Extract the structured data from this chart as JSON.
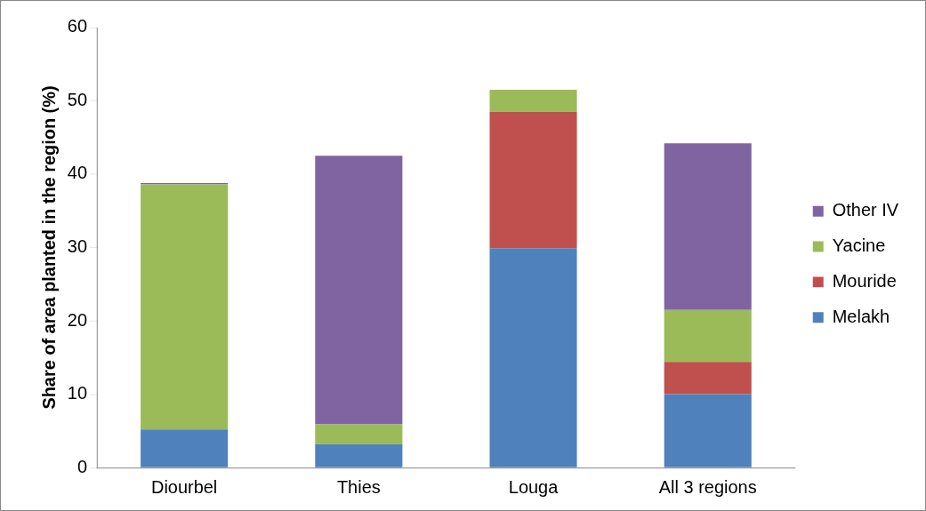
{
  "chart_data": {
    "type": "bar",
    "stacked": true,
    "ylabel": "Share of area planted in the region (%)",
    "categories": [
      "Diourbel",
      "Thies",
      "Louga",
      "All 3 regions"
    ],
    "series": [
      {
        "name": "Melakh",
        "color": "#4f81bd",
        "values": [
          5.2,
          3.2,
          29.9,
          10.0
        ]
      },
      {
        "name": "Mouride",
        "color": "#c0504d",
        "values": [
          0,
          0,
          18.6,
          4.4
        ]
      },
      {
        "name": "Yacine",
        "color": "#9bbb59",
        "values": [
          33.4,
          2.7,
          3.0,
          7.1
        ]
      },
      {
        "name": "Other IV",
        "color": "#8064a2",
        "values": [
          0.2,
          36.6,
          0,
          22.7
        ]
      }
    ],
    "ylim": [
      0,
      60
    ],
    "yticks": [
      0,
      10,
      20,
      30,
      40,
      50,
      60
    ],
    "grid": false,
    "legend": "right"
  }
}
